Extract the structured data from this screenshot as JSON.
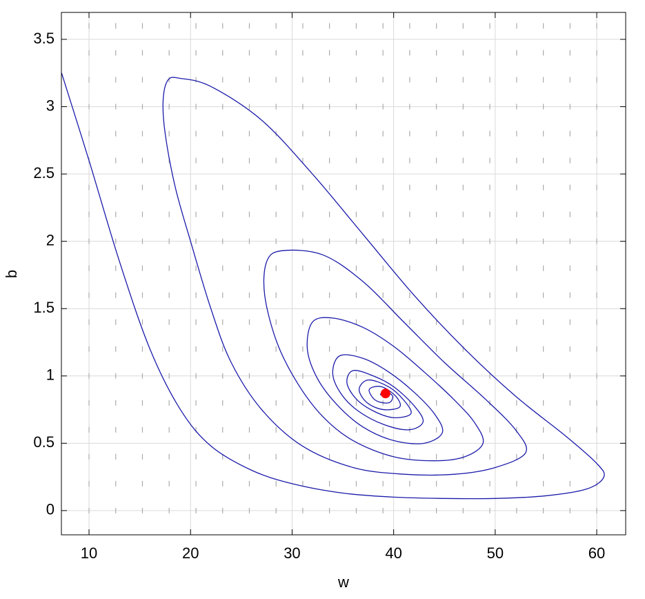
{
  "chart_data": {
    "type": "phase",
    "xlabel": "w",
    "ylabel": "b",
    "xlim": [
      7.28,
      62.85
    ],
    "ylim": [
      -0.18,
      3.7
    ],
    "xticks": [
      10,
      20,
      30,
      40,
      50,
      60
    ],
    "yticks": [
      0,
      0.5,
      1,
      1.5,
      2,
      2.5,
      3,
      3.5
    ],
    "grid": true,
    "field": {
      "color": "#aaaaaa",
      "w": [
        10,
        12.63,
        15.26,
        17.89,
        20.53,
        23.16,
        25.79,
        28.42,
        31.05,
        33.68,
        36.32,
        38.95,
        41.58,
        44.21,
        46.84,
        49.47,
        52.11,
        54.74,
        57.37,
        60
      ],
      "b": [
        0,
        0.2,
        0.4,
        0.6,
        0.8,
        1,
        1.2,
        1.4,
        1.6,
        1.8,
        2,
        2.2,
        2.4,
        2.6,
        2.8,
        3,
        3.2,
        3.4,
        3.6
      ]
    },
    "trajectory": {
      "color": "#1a1aaa",
      "x": [
        7.3,
        10,
        13,
        16,
        19,
        22,
        26,
        30,
        35,
        40,
        45,
        50,
        55,
        59,
        60.7,
        60,
        57,
        52,
        47,
        42,
        37,
        32,
        27,
        22,
        19,
        17.8,
        17.3,
        17.5,
        18.5,
        20,
        22,
        24,
        27,
        31,
        36,
        41,
        46,
        50,
        53,
        52,
        49,
        45,
        41,
        37,
        33,
        29,
        27.5,
        27.3,
        28.5,
        30.5,
        33,
        36,
        40,
        44,
        47,
        48.8,
        48,
        46,
        43,
        40,
        37,
        34,
        32,
        31.5,
        32.5,
        34.5,
        37,
        40,
        43,
        44.8,
        44,
        42,
        39.5,
        37,
        34.7,
        34,
        34.8,
        36.5,
        39,
        41.5,
        42.9,
        42,
        40,
        38,
        36,
        35.4,
        36.3,
        38,
        40,
        41.7,
        41,
        39.5,
        37.5,
        36.6,
        37.4,
        39,
        40.6,
        40.2,
        38.8,
        37.6,
        38.2,
        39.5,
        39.9,
        39.1,
        38.7,
        39.2
      ],
      "y": [
        3.25,
        2.6,
        1.85,
        1.2,
        0.75,
        0.48,
        0.3,
        0.2,
        0.13,
        0.1,
        0.09,
        0.09,
        0.11,
        0.16,
        0.25,
        0.35,
        0.55,
        0.85,
        1.2,
        1.6,
        2.05,
        2.5,
        2.9,
        3.15,
        3.21,
        3.2,
        3.05,
        2.8,
        2.4,
        2.0,
        1.5,
        1.1,
        0.75,
        0.48,
        0.32,
        0.27,
        0.27,
        0.32,
        0.43,
        0.6,
        0.83,
        1.1,
        1.4,
        1.7,
        1.9,
        1.93,
        1.85,
        1.6,
        1.25,
        0.95,
        0.7,
        0.52,
        0.4,
        0.37,
        0.4,
        0.5,
        0.65,
        0.82,
        1.03,
        1.22,
        1.36,
        1.43,
        1.4,
        1.2,
        0.98,
        0.78,
        0.62,
        0.52,
        0.5,
        0.58,
        0.72,
        0.88,
        1.03,
        1.13,
        1.15,
        1.02,
        0.87,
        0.74,
        0.64,
        0.6,
        0.66,
        0.78,
        0.92,
        1.0,
        1.04,
        0.95,
        0.83,
        0.74,
        0.69,
        0.72,
        0.82,
        0.92,
        0.97,
        0.9,
        0.8,
        0.75,
        0.77,
        0.85,
        0.92,
        0.9,
        0.82,
        0.8,
        0.85,
        0.89,
        0.86,
        0.87
      ]
    },
    "equilibrium": {
      "x": 39.2,
      "y": 0.87,
      "color": "#ff0000"
    }
  }
}
